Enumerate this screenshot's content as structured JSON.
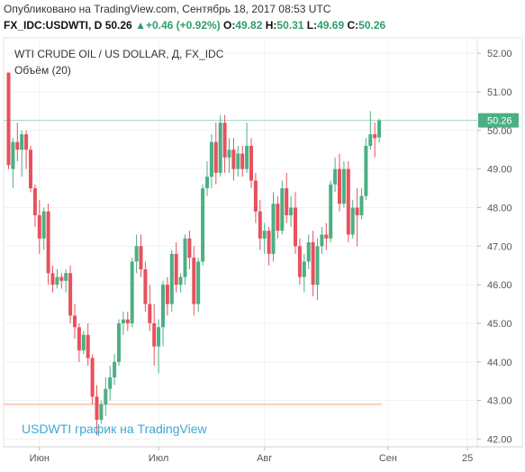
{
  "header": {
    "published": "Опубликовано на TradingView.com, Сентябрь 18, 2017 08:53 UTC",
    "symbol": "FX_IDC:USDWTI, D",
    "last": "50.26",
    "change": "+0.46 (+0.92%)",
    "o_label": "O:",
    "o_value": "49.82",
    "h_label": "H:",
    "h_value": "50.31",
    "l_label": "L:",
    "l_value": "49.69",
    "c_label": "C:",
    "c_value": "50.26"
  },
  "colors": {
    "up": "#4caf84",
    "down": "#e8515d",
    "price_line": "#9ed6c0",
    "support_line": "#f4a582",
    "watermark": "#3fa8d6"
  },
  "chart_data": {
    "type": "candlestick",
    "title": "WTI CRUDE OIL / US DOLLAR, Д, FX_IDC",
    "subtitle": "Объём (20)",
    "watermark": "USDWTI график на TradingView",
    "ylim": [
      41.8,
      52.4
    ],
    "yticks": [
      "52.00",
      "51.00",
      "50.00",
      "49.00",
      "48.00",
      "47.00",
      "46.00",
      "45.00",
      "44.00",
      "43.00",
      "42.00"
    ],
    "xticks": [
      {
        "label": "Июн",
        "index": 7
      },
      {
        "label": "Июл",
        "index": 34
      },
      {
        "label": "Авг",
        "index": 58
      },
      {
        "label": "Сен",
        "index": 86
      },
      {
        "label": "25",
        "index": 104
      }
    ],
    "last_price": 50.26,
    "last_price_label": "50.26",
    "support_level": 42.9,
    "candles": [
      [
        51.5,
        51.5,
        49.0,
        49.1
      ],
      [
        49.0,
        49.8,
        48.5,
        49.7
      ],
      [
        49.7,
        50.2,
        49.2,
        49.5
      ],
      [
        49.5,
        50.0,
        48.8,
        49.9
      ],
      [
        49.9,
        50.0,
        49.0,
        49.5
      ],
      [
        49.5,
        49.6,
        48.4,
        48.5
      ],
      [
        48.5,
        48.6,
        47.5,
        47.8
      ],
      [
        47.8,
        48.2,
        46.8,
        47.2
      ],
      [
        47.2,
        48.0,
        46.9,
        47.9
      ],
      [
        47.9,
        48.1,
        46.0,
        46.3
      ],
      [
        46.3,
        46.5,
        45.8,
        46.0
      ],
      [
        46.0,
        46.4,
        45.9,
        46.2
      ],
      [
        46.2,
        46.3,
        45.9,
        46.1
      ],
      [
        46.1,
        46.4,
        45.8,
        46.3
      ],
      [
        46.3,
        46.5,
        45.0,
        45.2
      ],
      [
        45.2,
        45.5,
        44.6,
        44.9
      ],
      [
        44.9,
        45.0,
        44.0,
        44.3
      ],
      [
        44.3,
        44.8,
        44.2,
        44.7
      ],
      [
        44.7,
        45.0,
        43.9,
        44.1
      ],
      [
        44.1,
        44.2,
        42.9,
        43.1
      ],
      [
        43.1,
        43.4,
        42.1,
        42.5
      ],
      [
        42.5,
        43.0,
        42.4,
        42.9
      ],
      [
        42.9,
        43.6,
        42.6,
        43.3
      ],
      [
        43.3,
        43.9,
        43.0,
        43.6
      ],
      [
        43.6,
        44.2,
        43.4,
        44.0
      ],
      [
        44.0,
        45.1,
        43.9,
        45.0
      ],
      [
        45.0,
        45.3,
        44.7,
        45.1
      ],
      [
        45.1,
        45.3,
        44.8,
        45.0
      ],
      [
        45.0,
        46.7,
        44.9,
        46.6
      ],
      [
        46.6,
        47.3,
        46.3,
        47.0
      ],
      [
        47.0,
        47.3,
        46.2,
        46.4
      ],
      [
        46.4,
        46.6,
        45.3,
        45.5
      ],
      [
        45.5,
        46.0,
        44.8,
        45.0
      ],
      [
        45.0,
        45.5,
        43.9,
        44.4
      ],
      [
        44.4,
        45.1,
        43.7,
        44.9
      ],
      [
        44.9,
        46.1,
        44.4,
        46.0
      ],
      [
        46.0,
        46.2,
        45.2,
        45.5
      ],
      [
        45.5,
        46.9,
        45.3,
        46.8
      ],
      [
        46.8,
        47.1,
        45.8,
        46.0
      ],
      [
        46.0,
        46.3,
        45.8,
        46.2
      ],
      [
        46.2,
        47.3,
        46.0,
        47.2
      ],
      [
        47.2,
        47.4,
        46.4,
        46.7
      ],
      [
        46.7,
        47.0,
        45.2,
        45.5
      ],
      [
        45.5,
        46.7,
        45.3,
        46.6
      ],
      [
        46.6,
        48.6,
        46.5,
        48.5
      ],
      [
        48.5,
        49.2,
        48.3,
        48.8
      ],
      [
        48.8,
        49.9,
        48.5,
        49.7
      ],
      [
        49.7,
        50.2,
        48.6,
        48.9
      ],
      [
        48.9,
        50.4,
        48.8,
        50.2
      ],
      [
        50.2,
        50.4,
        48.9,
        49.3
      ],
      [
        49.3,
        49.8,
        48.9,
        49.5
      ],
      [
        49.5,
        49.8,
        48.7,
        49.0
      ],
      [
        49.0,
        49.6,
        48.8,
        49.4
      ],
      [
        49.4,
        49.6,
        48.8,
        49.0
      ],
      [
        49.0,
        50.2,
        48.9,
        49.6
      ],
      [
        49.6,
        49.8,
        48.5,
        48.7
      ],
      [
        48.7,
        48.9,
        47.6,
        47.9
      ],
      [
        47.9,
        48.2,
        46.9,
        47.2
      ],
      [
        47.2,
        47.6,
        46.8,
        47.4
      ],
      [
        47.4,
        47.5,
        46.5,
        46.8
      ],
      [
        46.8,
        48.4,
        46.6,
        48.1
      ],
      [
        48.1,
        48.3,
        47.2,
        47.4
      ],
      [
        47.4,
        48.7,
        47.3,
        48.5
      ],
      [
        48.5,
        48.9,
        47.6,
        47.8
      ],
      [
        47.8,
        48.3,
        47.5,
        48.0
      ],
      [
        48.0,
        48.4,
        46.8,
        47.0
      ],
      [
        47.0,
        47.2,
        46.0,
        46.2
      ],
      [
        46.2,
        46.8,
        45.8,
        46.6
      ],
      [
        46.6,
        47.3,
        46.4,
        47.1
      ],
      [
        47.1,
        47.4,
        45.7,
        46.0
      ],
      [
        46.0,
        47.2,
        45.6,
        47.0
      ],
      [
        47.0,
        47.5,
        46.8,
        47.3
      ],
      [
        47.3,
        47.6,
        46.9,
        47.2
      ],
      [
        47.2,
        48.7,
        47.1,
        48.6
      ],
      [
        48.6,
        49.3,
        48.4,
        49.0
      ],
      [
        49.0,
        49.4,
        47.9,
        48.1
      ],
      [
        48.1,
        49.2,
        48.0,
        49.0
      ],
      [
        49.0,
        49.2,
        47.1,
        47.3
      ],
      [
        47.3,
        48.2,
        47.2,
        48.0
      ],
      [
        48.0,
        48.5,
        47.0,
        47.8
      ],
      [
        47.8,
        48.5,
        47.7,
        48.3
      ],
      [
        48.3,
        49.8,
        48.2,
        49.6
      ],
      [
        49.6,
        50.5,
        49.5,
        49.9
      ],
      [
        49.9,
        50.2,
        49.3,
        49.8
      ],
      [
        49.82,
        50.31,
        49.69,
        50.26
      ]
    ]
  }
}
